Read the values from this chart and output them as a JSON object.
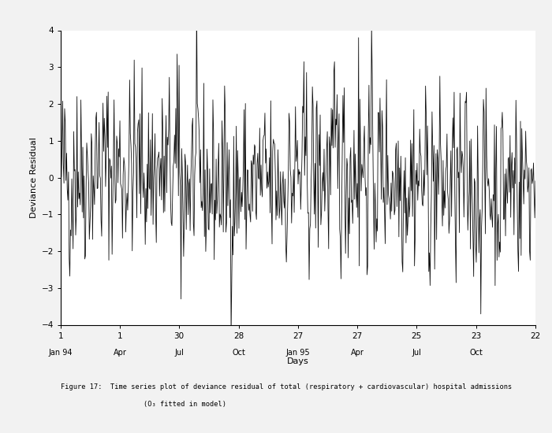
{
  "title": "",
  "caption_line1": "Figure 17:  Time series plot of deviance residual of total (respiratory + cardiovascular) hospital admissions",
  "caption_line2": "                    (O₃ fitted in model)",
  "ylabel": "Deviance Residual",
  "xlabel": "Days",
  "ylim": [
    -4,
    4
  ],
  "yticks": [
    -4,
    -3,
    -2,
    -1,
    0,
    1,
    2,
    3,
    4
  ],
  "background_color": "#ffffff",
  "line_color": "#111111",
  "line_width": 0.6,
  "fig_bg_color": "#f2f2f2",
  "tick_positions": [
    1,
    92,
    183,
    275,
    366,
    457,
    548,
    640,
    731
  ],
  "tick_day_labels": [
    "1",
    "1",
    "30",
    "28",
    "27",
    "27",
    "25",
    "23",
    "22"
  ],
  "tick_month_labels": [
    "Jan 94",
    "Apr",
    "Jul",
    "Oct",
    "Jan 95",
    "Apr",
    "Jul",
    "Oct",
    ""
  ],
  "n_points": 731,
  "seed": 42
}
